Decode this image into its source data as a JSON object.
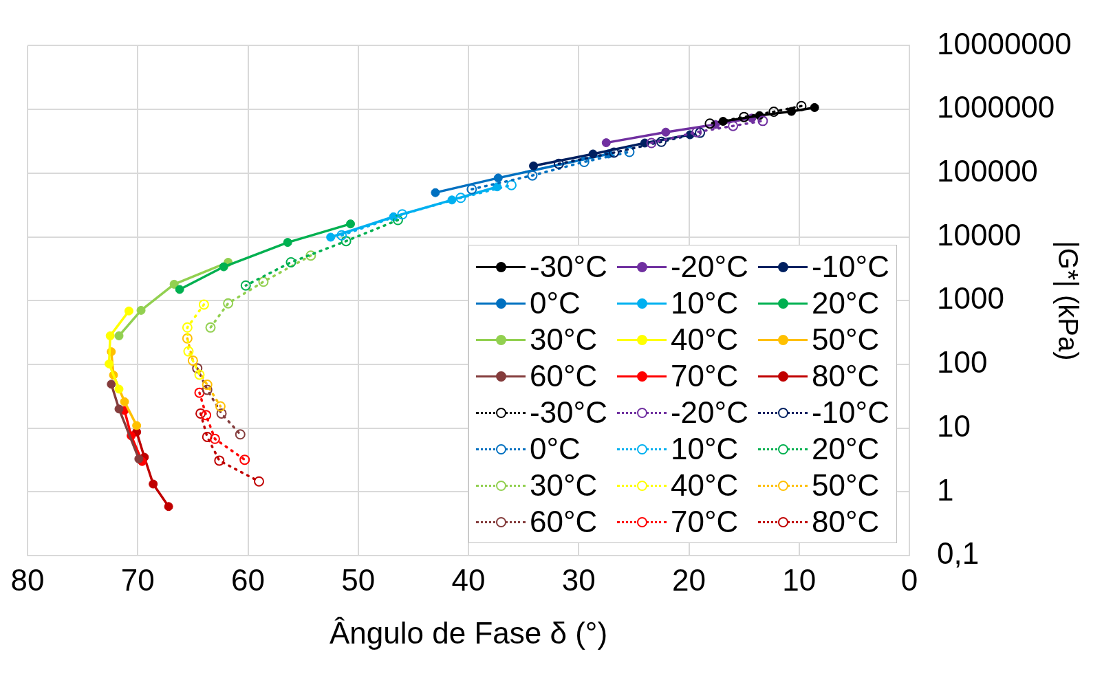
{
  "chart_data": {
    "type": "line",
    "xlabel": "Ângulo de Fase δ (°)",
    "ylabel": "|G*| (kPa)",
    "xlim": [
      80,
      0
    ],
    "xticks": [
      80,
      70,
      60,
      50,
      40,
      30,
      20,
      10,
      0
    ],
    "ylim": [
      0.1,
      10000000
    ],
    "yticks": [
      {
        "value": 0.1,
        "label": "0,1"
      },
      1,
      10,
      100,
      1000,
      10000,
      100000,
      1000000,
      10000000
    ],
    "log": "y",
    "grid": true,
    "legend": "bottom right",
    "marker": "circle",
    "series": [
      {
        "name": "-30°C",
        "color": "#000000",
        "line_style": "solid",
        "x": [
          8.6,
          10.7,
          13.6,
          16.9
        ],
        "values": [
          1070000,
          930000,
          800000,
          650000
        ]
      },
      {
        "name": "-20°C",
        "color": "#7030a0",
        "line_style": "solid",
        "x": [
          27.5,
          22.1,
          17.6,
          14.3
        ],
        "values": [
          300000,
          440000,
          580000,
          730000
        ]
      },
      {
        "name": "-10°C",
        "color": "#002060",
        "line_style": "solid",
        "x": [
          34.1,
          28.7,
          24.0,
          19.9
        ],
        "values": [
          130000,
          200000,
          297000,
          400000
        ]
      },
      {
        "name": "0°C",
        "color": "#0070c0",
        "line_style": "solid",
        "x": [
          43.0,
          37.3,
          27.3
        ],
        "values": [
          49500,
          84000,
          200000
        ]
      },
      {
        "name": "10°C",
        "color": "#00b0f0",
        "line_style": "solid",
        "x": [
          52.5,
          46.8,
          41.5,
          37.4
        ],
        "values": [
          9900,
          20700,
          38000,
          61000
        ]
      },
      {
        "name": "20°C",
        "color": "#00b050",
        "line_style": "solid",
        "x": [
          50.7,
          56.4,
          62.2,
          66.2
        ],
        "values": [
          16000,
          8200,
          3400,
          1500
        ]
      },
      {
        "name": "30°C",
        "color": "#92d050",
        "line_style": "solid",
        "x": [
          61.8,
          66.7,
          69.7,
          71.7
        ],
        "values": [
          4000,
          1810,
          705,
          281
        ]
      },
      {
        "name": "40°C",
        "color": "#ffff00",
        "line_style": "solid",
        "x": [
          70.8,
          72.5,
          72.6,
          71.7
        ],
        "values": [
          690,
          281,
          102,
          41
        ]
      },
      {
        "name": "50°C",
        "color": "#ffc000",
        "line_style": "solid",
        "x": [
          72.4,
          72.2,
          71.2,
          70.1
        ],
        "values": [
          158,
          68,
          26,
          11
        ]
      },
      {
        "name": "60°C",
        "color": "#843c3c",
        "line_style": "solid",
        "x": [
          72.4,
          71.7,
          69.9
        ],
        "values": [
          49,
          20,
          3.3
        ]
      },
      {
        "name": "70°C",
        "color": "#ff0000",
        "line_style": "solid",
        "x": [
          71.2,
          70.6,
          69.6
        ],
        "values": [
          19,
          7.6,
          3.0
        ]
      },
      {
        "name": "80°C",
        "color": "#c00000",
        "line_style": "solid",
        "x": [
          70.1,
          69.4,
          68.6,
          67.2
        ],
        "values": [
          8.7,
          3.5,
          1.33,
          0.59
        ]
      },
      {
        "name": "-30°C",
        "color": "#000000",
        "line_style": "dotted",
        "x": [
          9.8,
          12.3,
          15.0,
          18.1
        ],
        "values": [
          1130000,
          920000,
          760000,
          600000
        ]
      },
      {
        "name": "-20°C",
        "color": "#7030a0",
        "line_style": "dotted",
        "x": [
          23.4,
          19.3,
          16.0,
          13.3
        ],
        "values": [
          297000,
          440000,
          550000,
          660000
        ]
      },
      {
        "name": "-10°C",
        "color": "#002060",
        "line_style": "dotted",
        "x": [
          31.8,
          26.8,
          22.5,
          19.0
        ],
        "values": [
          140000,
          210000,
          310000,
          430000
        ]
      },
      {
        "name": "0°C",
        "color": "#0070c0",
        "line_style": "dotted",
        "x": [
          39.7,
          34.2,
          29.5,
          25.4
        ],
        "values": [
          56000,
          92000,
          150000,
          215000
        ]
      },
      {
        "name": "10°C",
        "color": "#00b0f0",
        "line_style": "dotted",
        "x": [
          51.5,
          46.0,
          40.7,
          36.1
        ],
        "values": [
          10600,
          22600,
          41000,
          65000
        ]
      },
      {
        "name": "20°C",
        "color": "#00b050",
        "line_style": "dotted",
        "x": [
          46.4,
          51.1,
          56.1,
          60.2
        ],
        "values": [
          18400,
          8600,
          4000,
          1730
        ]
      },
      {
        "name": "30°C",
        "color": "#92d050",
        "line_style": "dotted",
        "x": [
          54.3,
          58.6,
          61.8,
          63.4
        ],
        "values": [
          5100,
          1980,
          908,
          379
        ]
      },
      {
        "name": "40°C",
        "color": "#ffff00",
        "line_style": "dotted",
        "x": [
          64.0,
          65.5,
          65.4,
          64.4
        ],
        "values": [
          870,
          380,
          160,
          69
        ]
      },
      {
        "name": "50°C",
        "color": "#ffc000",
        "line_style": "dotted",
        "x": [
          65.5,
          65.0,
          63.7,
          62.5
        ],
        "values": [
          256,
          115,
          48,
          22
        ]
      },
      {
        "name": "60°C",
        "color": "#843c3c",
        "line_style": "dotted",
        "x": [
          64.6,
          63.7,
          62.4,
          60.7
        ],
        "values": [
          87,
          40,
          17,
          8.0
        ]
      },
      {
        "name": "70°C",
        "color": "#ff0000",
        "line_style": "dotted",
        "x": [
          64.4,
          63.8,
          63.0,
          60.3
        ],
        "values": [
          36,
          16,
          6.8,
          3.2
        ]
      },
      {
        "name": "80°C",
        "color": "#c00000",
        "line_style": "dotted",
        "x": [
          64.3,
          63.7,
          62.6,
          59.0
        ],
        "values": [
          17,
          7.3,
          3.1,
          1.46
        ]
      }
    ]
  }
}
